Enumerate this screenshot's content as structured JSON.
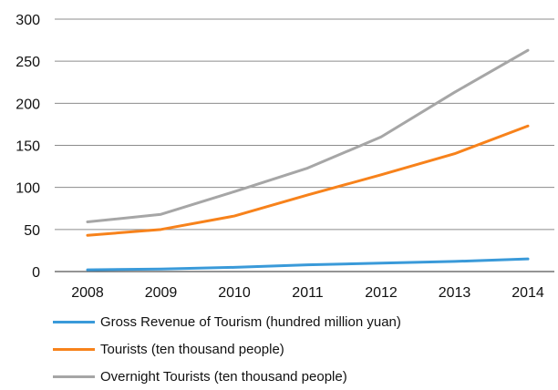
{
  "chart_data": {
    "type": "line",
    "title": "",
    "xlabel": "",
    "ylabel": "",
    "categories": [
      "2008",
      "2009",
      "2010",
      "2011",
      "2012",
      "2013",
      "2014"
    ],
    "ylim": [
      0,
      300
    ],
    "yticks": [
      "0",
      "50",
      "100",
      "150",
      "200",
      "250",
      "300"
    ],
    "grid": true,
    "legend_position": "bottom",
    "series": [
      {
        "name": "Gross Revenue of Tourism (hundred million yuan)",
        "color": "#3a9ad9",
        "values": [
          2,
          3,
          5,
          8,
          10,
          12,
          15
        ]
      },
      {
        "name": "Tourists (ten thousand people)",
        "color": "#f7821b",
        "values": [
          43,
          50,
          66,
          91,
          115,
          140,
          173
        ]
      },
      {
        "name": "Overnight Tourists (ten thousand people)",
        "color": "#a6a6a6",
        "values": [
          59,
          68,
          95,
          123,
          160,
          213,
          263
        ]
      }
    ]
  }
}
